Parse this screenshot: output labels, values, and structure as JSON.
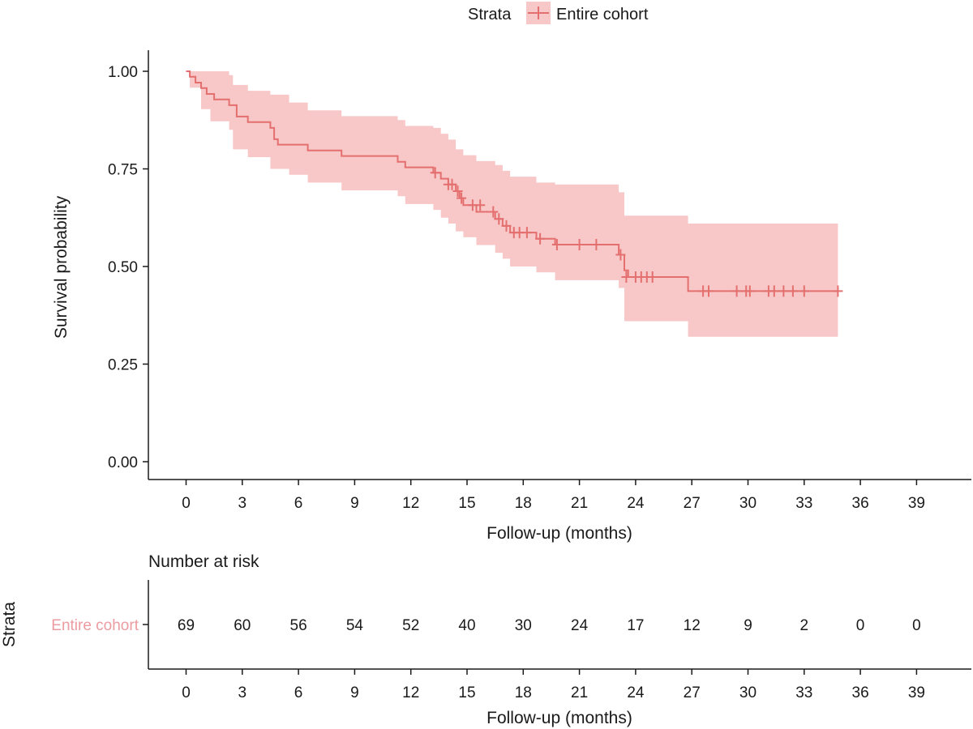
{
  "chart_data": {
    "type": "line",
    "title": "",
    "xlabel": "Follow-up (months)",
    "ylabel": "Survival probability",
    "xlim": [
      -0.5,
      41
    ],
    "ylim": [
      0,
      1
    ],
    "x_ticks": [
      "0",
      "3",
      "6",
      "9",
      "12",
      "15",
      "18",
      "21",
      "24",
      "27",
      "30",
      "33",
      "36",
      "39"
    ],
    "y_ticks": [
      "0.00",
      "0.25",
      "0.50",
      "0.75",
      "1.00"
    ],
    "legend": {
      "title": "Strata",
      "position": "top",
      "entries": [
        "Entire cohort"
      ]
    },
    "colors": {
      "line": "#e46f6f",
      "band": "#f8c7c7",
      "risk_label": "#ec9ba0"
    },
    "series": [
      {
        "name": "Entire cohort",
        "steps": [
          [
            0,
            1.0
          ],
          [
            0.2,
            0.986
          ],
          [
            0.5,
            0.971
          ],
          [
            0.8,
            0.957
          ],
          [
            1.1,
            0.942
          ],
          [
            1.5,
            0.928
          ],
          [
            2.3,
            0.913
          ],
          [
            2.7,
            0.884
          ],
          [
            3.3,
            0.87
          ],
          [
            4.5,
            0.855
          ],
          [
            4.7,
            0.826
          ],
          [
            4.9,
            0.812
          ],
          [
            6.5,
            0.797
          ],
          [
            8.3,
            0.783
          ],
          [
            11.3,
            0.768
          ],
          [
            11.7,
            0.754
          ],
          [
            13.2,
            0.74
          ],
          [
            13.6,
            0.725
          ],
          [
            14.0,
            0.71
          ],
          [
            14.4,
            0.693
          ],
          [
            14.6,
            0.675
          ],
          [
            14.8,
            0.657
          ],
          [
            15.5,
            0.64
          ],
          [
            16.5,
            0.622
          ],
          [
            16.9,
            0.604
          ],
          [
            17.3,
            0.587
          ],
          [
            18.7,
            0.571
          ],
          [
            19.7,
            0.556
          ],
          [
            23.1,
            0.53
          ],
          [
            23.4,
            0.49
          ],
          [
            23.6,
            0.473
          ],
          [
            26.8,
            0.437
          ]
        ],
        "end_time": 34.8,
        "ci": [
          [
            0,
            1.0,
            1.0
          ],
          [
            0.2,
            0.958,
            1.0
          ],
          [
            0.8,
            0.903,
            1.0
          ],
          [
            1.3,
            0.872,
            1.0
          ],
          [
            2.3,
            0.85,
            0.99
          ],
          [
            2.5,
            0.8,
            0.965
          ],
          [
            3.3,
            0.78,
            0.95
          ],
          [
            4.5,
            0.75,
            0.94
          ],
          [
            5.5,
            0.735,
            0.92
          ],
          [
            6.5,
            0.715,
            0.9
          ],
          [
            8.3,
            0.695,
            0.885
          ],
          [
            11.3,
            0.68,
            0.875
          ],
          [
            11.7,
            0.66,
            0.86
          ],
          [
            13.2,
            0.645,
            0.855
          ],
          [
            13.6,
            0.625,
            0.84
          ],
          [
            14.0,
            0.61,
            0.825
          ],
          [
            14.4,
            0.59,
            0.8
          ],
          [
            14.8,
            0.575,
            0.785
          ],
          [
            15.5,
            0.555,
            0.77
          ],
          [
            16.5,
            0.535,
            0.76
          ],
          [
            16.9,
            0.52,
            0.745
          ],
          [
            17.3,
            0.5,
            0.73
          ],
          [
            18.7,
            0.485,
            0.715
          ],
          [
            19.7,
            0.465,
            0.71
          ],
          [
            23.1,
            0.445,
            0.69
          ],
          [
            23.4,
            0.36,
            0.63
          ],
          [
            26.8,
            0.32,
            0.61
          ],
          [
            34.8,
            0.32,
            0.61
          ]
        ],
        "censored": [
          [
            13.3,
            0.74
          ],
          [
            14.0,
            0.71
          ],
          [
            14.2,
            0.71
          ],
          [
            14.5,
            0.693
          ],
          [
            14.7,
            0.675
          ],
          [
            15.3,
            0.657
          ],
          [
            15.7,
            0.657
          ],
          [
            16.4,
            0.64
          ],
          [
            16.7,
            0.622
          ],
          [
            17.1,
            0.604
          ],
          [
            17.5,
            0.587
          ],
          [
            17.8,
            0.587
          ],
          [
            18.2,
            0.587
          ],
          [
            18.9,
            0.571
          ],
          [
            19.8,
            0.556
          ],
          [
            21.0,
            0.556
          ],
          [
            21.9,
            0.556
          ],
          [
            23.2,
            0.53
          ],
          [
            23.5,
            0.473
          ],
          [
            24.0,
            0.473
          ],
          [
            24.3,
            0.473
          ],
          [
            24.6,
            0.473
          ],
          [
            24.9,
            0.473
          ],
          [
            27.6,
            0.437
          ],
          [
            27.9,
            0.437
          ],
          [
            29.4,
            0.437
          ],
          [
            29.9,
            0.437
          ],
          [
            30.1,
            0.437
          ],
          [
            31.1,
            0.437
          ],
          [
            31.4,
            0.437
          ],
          [
            31.9,
            0.437
          ],
          [
            32.4,
            0.437
          ],
          [
            33.0,
            0.437
          ],
          [
            34.8,
            0.437
          ]
        ]
      }
    ],
    "risk_table": {
      "title": "Number at risk",
      "ylabel": "Strata",
      "xlabel": "Follow-up (months)",
      "stratum_label": "Entire cohort",
      "times": [
        0,
        3,
        6,
        9,
        12,
        15,
        18,
        21,
        24,
        27,
        30,
        33,
        36,
        39
      ],
      "counts": [
        "69",
        "60",
        "56",
        "54",
        "52",
        "40",
        "30",
        "24",
        "17",
        "12",
        "9",
        "2",
        "0",
        "0"
      ]
    }
  }
}
